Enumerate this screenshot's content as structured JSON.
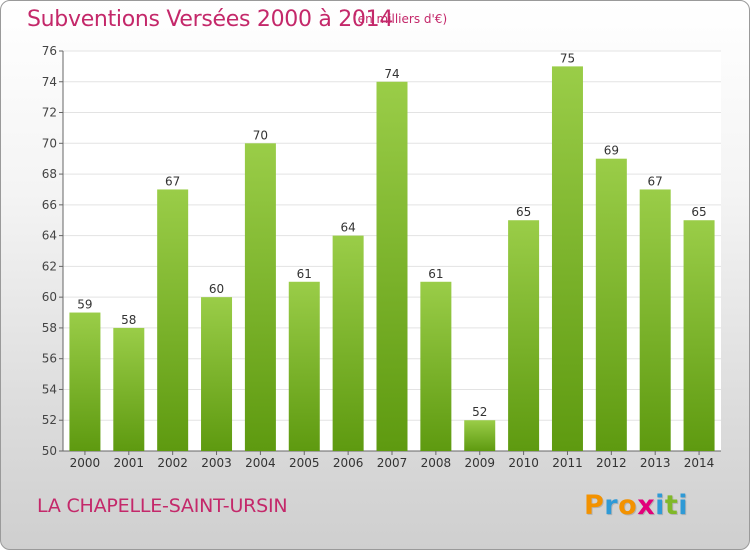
{
  "header": {
    "title": "Subventions Versées 2000 à 2014",
    "subtitle": "(en milliers d'€)"
  },
  "footer": {
    "commune": "LA CHAPELLE-SAINT-URSIN",
    "logo_text": "Proxiti",
    "logo_colors": [
      "#f39200",
      "#2f9ad6",
      "#f39200",
      "#e2007a",
      "#2f9ad6",
      "#80b828",
      "#2f9ad6"
    ]
  },
  "colors": {
    "title": "#c4286a",
    "bar_top": "#9acd48",
    "bar_bottom": "#5e9a10",
    "grid": "#e3e3e3",
    "axis": "#666666"
  },
  "chart_data": {
    "type": "bar",
    "title": "Subventions Versées 2000 à 2014",
    "subtitle": "(en milliers d'€)",
    "xlabel": "",
    "ylabel": "",
    "categories": [
      "2000",
      "2001",
      "2002",
      "2003",
      "2004",
      "2005",
      "2006",
      "2007",
      "2008",
      "2009",
      "2010",
      "2011",
      "2012",
      "2013",
      "2014"
    ],
    "values": [
      59,
      58,
      67,
      60,
      70,
      61,
      64,
      74,
      61,
      52,
      65,
      75,
      69,
      67,
      65
    ],
    "ylim": [
      50,
      76
    ],
    "yticks": [
      50,
      52,
      54,
      56,
      58,
      60,
      62,
      64,
      66,
      68,
      70,
      72,
      74,
      76
    ],
    "grid": true,
    "data_labels": true,
    "legend": "none"
  }
}
